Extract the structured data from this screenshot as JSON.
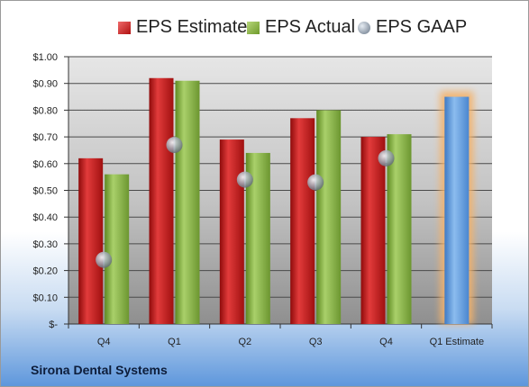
{
  "legend": [
    {
      "label": "EPS Estimate",
      "color": "#cc1f1f"
    },
    {
      "label": "EPS Actual",
      "color": "#8ab44a"
    },
    {
      "label": "EPS GAAP",
      "color": "#9aa4b0"
    }
  ],
  "company": "Sirona Dental Systems",
  "chart_data": {
    "type": "bar",
    "categories": [
      "Q4",
      "Q1",
      "Q2",
      "Q3",
      "Q4",
      "Q1 Estimate"
    ],
    "series": [
      {
        "name": "EPS Estimate",
        "values": [
          0.62,
          0.92,
          0.69,
          0.77,
          0.7,
          null
        ],
        "color": "#cc1f1f"
      },
      {
        "name": "EPS Actual",
        "values": [
          0.56,
          0.91,
          0.64,
          0.8,
          0.71,
          null
        ],
        "color": "#8ab44a"
      },
      {
        "name": "EPS GAAP",
        "type": "scatter",
        "values": [
          0.24,
          0.67,
          0.54,
          0.53,
          0.62,
          null
        ],
        "color": "#9aa4b0"
      }
    ],
    "forecast": {
      "category": "Q1 Estimate",
      "value": 0.85,
      "color": "#5b9bdc",
      "glow": "#f4b26b"
    },
    "ylim": [
      0,
      1.0
    ],
    "yticks": [
      "$-",
      "$0.10",
      "$0.20",
      "$0.30",
      "$0.40",
      "$0.50",
      "$0.60",
      "$0.70",
      "$0.80",
      "$0.90",
      "$1.00"
    ],
    "grid": true,
    "legend_position": "top"
  }
}
